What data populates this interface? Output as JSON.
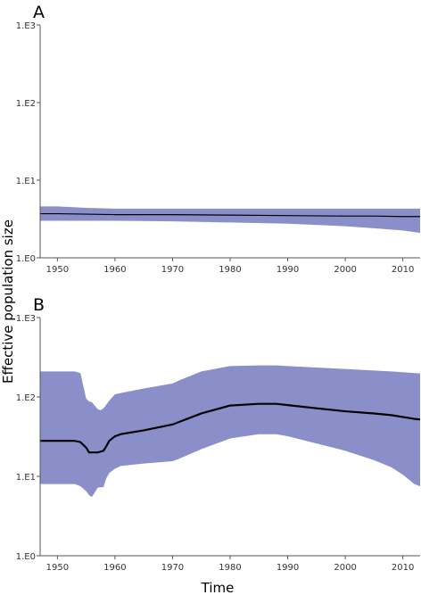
{
  "chart_data": [
    {
      "type": "area",
      "panel_label": "A",
      "x_ticks": [
        1950,
        1960,
        1970,
        1980,
        1990,
        2000,
        2010
      ],
      "xlim": [
        1947,
        2013
      ],
      "y_scale": "log",
      "ylim": [
        1,
        1000
      ],
      "y_tick_labels": [
        "1.E0",
        "1.E1",
        "1.E2",
        "1.E3"
      ],
      "fill_color": "#8a8fca",
      "line_color": "#000000",
      "series": [
        {
          "x": [
            1947,
            1950,
            1955,
            1960,
            1970,
            1980,
            1990,
            2000,
            2005,
            2010,
            2013
          ],
          "median": [
            3.7,
            3.7,
            3.65,
            3.6,
            3.6,
            3.55,
            3.5,
            3.45,
            3.45,
            3.4,
            3.4
          ],
          "upper": [
            4.6,
            4.6,
            4.4,
            4.3,
            4.3,
            4.3,
            4.3,
            4.3,
            4.3,
            4.3,
            4.3
          ],
          "lower": [
            3.0,
            3.0,
            3.0,
            3.0,
            2.95,
            2.85,
            2.75,
            2.55,
            2.4,
            2.25,
            2.1
          ]
        }
      ]
    },
    {
      "type": "area",
      "panel_label": "B",
      "x_ticks": [
        1950,
        1960,
        1970,
        1980,
        1990,
        2000,
        2010
      ],
      "xlim": [
        1947,
        2013
      ],
      "y_scale": "log",
      "ylim": [
        1,
        1000
      ],
      "y_tick_labels": [
        "1.E0",
        "1.E1",
        "1.E2",
        "1.E3"
      ],
      "fill_color": "#8a8fca",
      "line_color": "#000000",
      "series": [
        {
          "x": [
            1947,
            1950,
            1953,
            1954,
            1955,
            1955.5,
            1956,
            1957,
            1957.5,
            1958,
            1958.5,
            1959,
            1960,
            1961,
            1965,
            1970,
            1971,
            1975,
            1980,
            1985,
            1988,
            1990,
            1995,
            2000,
            2005,
            2008,
            2010,
            2012,
            2013
          ],
          "median": [
            28,
            28,
            28,
            27,
            23,
            20,
            20,
            20,
            20.5,
            21,
            24,
            28,
            32,
            34,
            38,
            45,
            48,
            62,
            78,
            82,
            82,
            79,
            72,
            66,
            62,
            59,
            56,
            53,
            52
          ],
          "upper": [
            210,
            210,
            210,
            200,
            95,
            88,
            86,
            70,
            68,
            72,
            80,
            90,
            108,
            112,
            128,
            148,
            160,
            210,
            245,
            250,
            250,
            245,
            235,
            225,
            215,
            210,
            205,
            200,
            198
          ],
          "lower": [
            8,
            8,
            8,
            7.5,
            6.5,
            5.8,
            5.5,
            7.2,
            7.3,
            7.3,
            9.5,
            11,
            12.5,
            13.5,
            14.5,
            15.5,
            16.5,
            22,
            30,
            34,
            34,
            32,
            26,
            21,
            16,
            13,
            10.5,
            8,
            7.5
          ]
        }
      ]
    }
  ],
  "x_axis_title": "Time",
  "y_axis_title": "Effective population size"
}
